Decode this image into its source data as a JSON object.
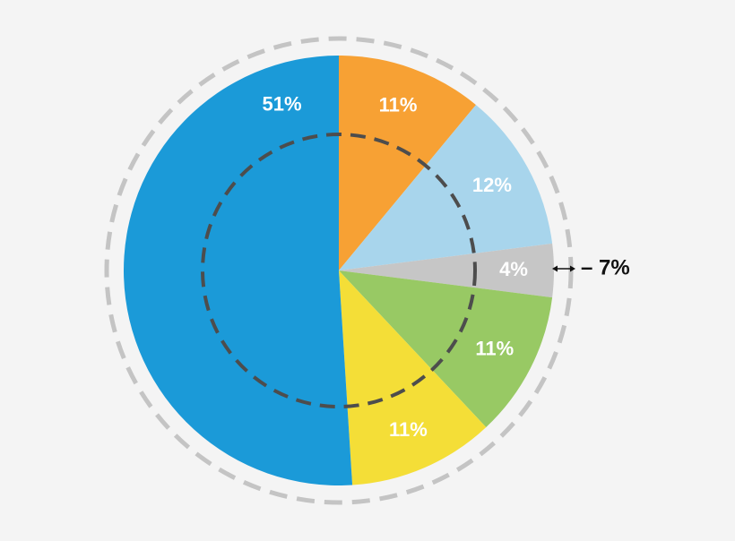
{
  "chart_data": {
    "type": "pie",
    "values": [
      11,
      12,
      4,
      11,
      11,
      51
    ],
    "value_labels": [
      "11%",
      "12%",
      "4%",
      "11%",
      "11%",
      "51%"
    ],
    "colors": [
      "#f7a134",
      "#a8d5ec",
      "#c6c6c6",
      "#98c964",
      "#f4de37",
      "#1b9ad8"
    ],
    "start_angle": 0,
    "direction": "clockwise",
    "annotation": "– 7%"
  }
}
